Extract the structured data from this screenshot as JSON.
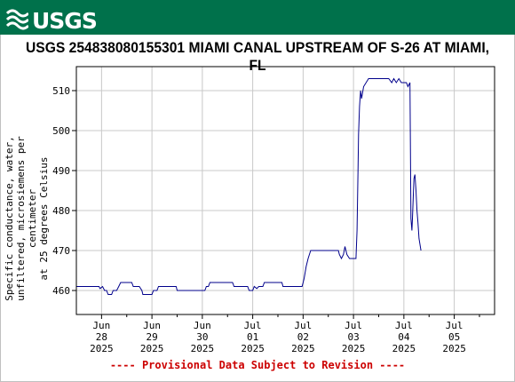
{
  "header": {
    "logo_text": "USGS"
  },
  "chart_data": {
    "type": "line",
    "title": "USGS 254838080155301 MIAMI CANAL UPSTREAM OF S-26 AT MIAMI, FL",
    "ylabel": "Specific conductance, water, unfiltered, microsiemens per centimeter at 25 degrees Celsius",
    "ylabel_lines": [
      "Specific conductance, water,",
      "unfiltered, microsiemens per centimeter",
      "at 25 degrees Celsius"
    ],
    "ylim": [
      454,
      516
    ],
    "yticks": [
      460,
      470,
      480,
      490,
      500,
      510
    ],
    "xlim": [
      0,
      8.3
    ],
    "xticks": [
      {
        "x": 0.5,
        "month": "Jun",
        "day": "28",
        "year": "2025"
      },
      {
        "x": 1.5,
        "month": "Jun",
        "day": "29",
        "year": "2025"
      },
      {
        "x": 2.5,
        "month": "Jun",
        "day": "30",
        "year": "2025"
      },
      {
        "x": 3.5,
        "month": "Jul",
        "day": "01",
        "year": "2025"
      },
      {
        "x": 4.5,
        "month": "Jul",
        "day": "02",
        "year": "2025"
      },
      {
        "x": 5.5,
        "month": "Jul",
        "day": "03",
        "year": "2025"
      },
      {
        "x": 6.5,
        "month": "Jul",
        "day": "04",
        "year": "2025"
      },
      {
        "x": 7.5,
        "month": "Jul",
        "day": "05",
        "year": "2025"
      }
    ],
    "grid": true,
    "line_color": "#00008b",
    "series": [
      {
        "points": [
          [
            0.0,
            461
          ],
          [
            0.45,
            461
          ],
          [
            0.47,
            460.5
          ],
          [
            0.52,
            461
          ],
          [
            0.56,
            460
          ],
          [
            0.6,
            460
          ],
          [
            0.63,
            459
          ],
          [
            0.7,
            459
          ],
          [
            0.73,
            460
          ],
          [
            0.8,
            460
          ],
          [
            0.84,
            461
          ],
          [
            0.88,
            462
          ],
          [
            1.1,
            462
          ],
          [
            1.13,
            461
          ],
          [
            1.25,
            461
          ],
          [
            1.3,
            460
          ],
          [
            1.32,
            459
          ],
          [
            1.5,
            459
          ],
          [
            1.53,
            460
          ],
          [
            1.6,
            460
          ],
          [
            1.63,
            461
          ],
          [
            1.75,
            461
          ],
          [
            1.85,
            461
          ],
          [
            1.98,
            461
          ],
          [
            2.0,
            460
          ],
          [
            2.4,
            460
          ],
          [
            2.55,
            460
          ],
          [
            2.58,
            461
          ],
          [
            2.62,
            461
          ],
          [
            2.65,
            462
          ],
          [
            2.8,
            462
          ],
          [
            3.0,
            462
          ],
          [
            3.1,
            462
          ],
          [
            3.13,
            461
          ],
          [
            3.4,
            461
          ],
          [
            3.43,
            460
          ],
          [
            3.5,
            460
          ],
          [
            3.53,
            461
          ],
          [
            3.58,
            460.5
          ],
          [
            3.62,
            461
          ],
          [
            3.7,
            461
          ],
          [
            3.73,
            462
          ],
          [
            3.9,
            462
          ],
          [
            4.08,
            462
          ],
          [
            4.1,
            461
          ],
          [
            4.48,
            461
          ],
          [
            4.5,
            462
          ],
          [
            4.52,
            463
          ],
          [
            4.56,
            466
          ],
          [
            4.6,
            468
          ],
          [
            4.65,
            470
          ],
          [
            5.0,
            470
          ],
          [
            5.1,
            470
          ],
          [
            5.2,
            470
          ],
          [
            5.22,
            469
          ],
          [
            5.26,
            468
          ],
          [
            5.3,
            469
          ],
          [
            5.33,
            471
          ],
          [
            5.37,
            469
          ],
          [
            5.42,
            468
          ],
          [
            5.55,
            468
          ],
          [
            5.57,
            475
          ],
          [
            5.59,
            490
          ],
          [
            5.6,
            499
          ],
          [
            5.62,
            506
          ],
          [
            5.64,
            510
          ],
          [
            5.66,
            508
          ],
          [
            5.7,
            511
          ],
          [
            5.75,
            512
          ],
          [
            5.8,
            513
          ],
          [
            6.2,
            513
          ],
          [
            6.26,
            512
          ],
          [
            6.3,
            513
          ],
          [
            6.35,
            512
          ],
          [
            6.4,
            513
          ],
          [
            6.45,
            512
          ],
          [
            6.55,
            512
          ],
          [
            6.58,
            511
          ],
          [
            6.62,
            512
          ],
          [
            6.64,
            478
          ],
          [
            6.66,
            475
          ],
          [
            6.67,
            478
          ],
          [
            6.7,
            488
          ],
          [
            6.72,
            489
          ],
          [
            6.74,
            485
          ],
          [
            6.76,
            480
          ],
          [
            6.78,
            477
          ],
          [
            6.8,
            473
          ],
          [
            6.84,
            470
          ]
        ]
      }
    ],
    "annotation": "---- Provisional Data Subject to Revision ----"
  }
}
